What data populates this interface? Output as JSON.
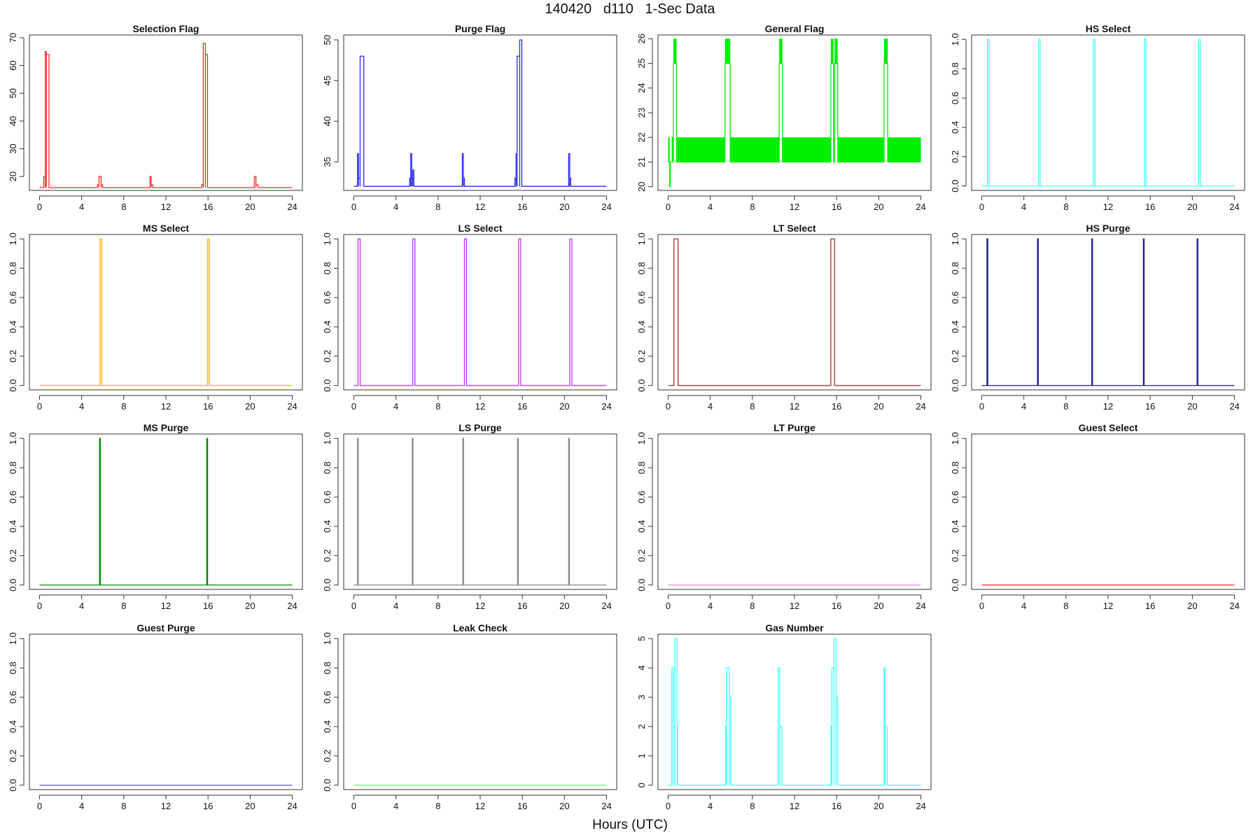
{
  "figure": {
    "title": "140420   d110   1-Sec Data",
    "xlabel": "Hours (UTC)"
  },
  "chart_data": [
    {
      "type": "line",
      "title": "Selection Flag",
      "color": "#ff2a2a",
      "xlim": [
        0,
        24
      ],
      "ylim": [
        15,
        71
      ],
      "xticks": [
        0,
        4,
        8,
        12,
        16,
        20,
        24
      ],
      "yticks": [
        20,
        30,
        40,
        50,
        60,
        70
      ],
      "baseline": 16,
      "segments": [
        [
          0.4,
          0.55,
          20
        ],
        [
          0.55,
          0.65,
          65
        ],
        [
          0.65,
          0.9,
          64
        ],
        [
          5.5,
          5.65,
          17
        ],
        [
          5.65,
          5.85,
          20
        ],
        [
          5.85,
          6.0,
          17
        ],
        [
          10.5,
          10.6,
          20
        ],
        [
          10.6,
          10.75,
          17
        ],
        [
          15.4,
          15.55,
          17
        ],
        [
          15.55,
          15.75,
          68
        ],
        [
          15.75,
          15.95,
          64
        ],
        [
          20.4,
          20.55,
          20
        ],
        [
          20.55,
          20.75,
          17
        ]
      ],
      "fills": []
    },
    {
      "type": "line",
      "title": "Purge Flag",
      "color": "#2a2aee",
      "xlim": [
        0,
        24
      ],
      "ylim": [
        31.5,
        50.6
      ],
      "xticks": [
        0,
        4,
        8,
        12,
        16,
        20,
        24
      ],
      "yticks": [
        35,
        40,
        45,
        50
      ],
      "baseline": 32,
      "segments": [
        [
          0.35,
          0.45,
          36
        ],
        [
          0.45,
          0.6,
          33
        ],
        [
          0.6,
          0.95,
          48
        ],
        [
          5.3,
          5.4,
          33
        ],
        [
          5.4,
          5.5,
          36
        ],
        [
          5.5,
          5.6,
          33
        ],
        [
          5.6,
          5.7,
          34
        ],
        [
          10.3,
          10.4,
          36
        ],
        [
          10.4,
          10.5,
          33
        ],
        [
          15.3,
          15.4,
          33
        ],
        [
          15.4,
          15.5,
          36
        ],
        [
          15.5,
          15.75,
          48
        ],
        [
          15.75,
          15.95,
          50
        ],
        [
          20.4,
          20.5,
          36
        ],
        [
          20.5,
          20.6,
          33
        ]
      ],
      "fills": []
    },
    {
      "type": "line",
      "title": "General Flag",
      "color": "#00ee00",
      "xlim": [
        0,
        24
      ],
      "ylim": [
        19.85,
        26.15
      ],
      "xticks": [
        0,
        4,
        8,
        12,
        16,
        20,
        24
      ],
      "yticks": [
        20,
        21,
        22,
        23,
        24,
        25,
        26
      ],
      "baseline": 21,
      "segments": [
        [
          0.15,
          0.2,
          20
        ],
        [
          0.4,
          0.5,
          22
        ],
        [
          0.5,
          0.8,
          25
        ],
        [
          5.4,
          5.9,
          25
        ],
        [
          10.55,
          10.85,
          25
        ],
        [
          15.45,
          15.7,
          25
        ],
        [
          15.8,
          16.1,
          25
        ],
        [
          20.5,
          20.85,
          25
        ]
      ],
      "fills": [
        [
          0.0,
          0.15,
          21,
          22
        ],
        [
          0.35,
          0.5,
          21,
          22
        ],
        [
          0.5,
          0.8,
          25,
          26
        ],
        [
          0.8,
          5.4,
          21,
          22
        ],
        [
          5.4,
          5.9,
          25,
          26
        ],
        [
          5.9,
          10.55,
          21,
          22
        ],
        [
          10.55,
          10.85,
          25,
          26
        ],
        [
          10.85,
          15.45,
          21,
          22
        ],
        [
          15.45,
          15.7,
          25,
          26
        ],
        [
          15.8,
          16.1,
          25,
          26
        ],
        [
          16.1,
          20.5,
          21,
          22
        ],
        [
          20.5,
          20.85,
          25,
          26
        ],
        [
          20.85,
          24.0,
          21,
          22
        ]
      ]
    },
    {
      "type": "line",
      "title": "HS Select",
      "color": "#44ffff",
      "xlim": [
        0,
        24
      ],
      "ylim": [
        -0.03,
        1.03
      ],
      "xticks": [
        0,
        4,
        8,
        12,
        16,
        20,
        24
      ],
      "yticks": [
        0.0,
        0.2,
        0.4,
        0.6,
        0.8,
        1.0
      ],
      "baseline": 0,
      "segments": [
        [
          0.55,
          0.7,
          1
        ],
        [
          5.4,
          5.55,
          1
        ],
        [
          10.6,
          10.75,
          1
        ],
        [
          15.45,
          15.6,
          1
        ],
        [
          20.6,
          20.75,
          1
        ]
      ],
      "fills": []
    },
    {
      "type": "line",
      "title": "MS Select",
      "color": "#ffb000",
      "xlim": [
        0,
        24
      ],
      "ylim": [
        -0.03,
        1.03
      ],
      "xticks": [
        0,
        4,
        8,
        12,
        16,
        20,
        24
      ],
      "yticks": [
        0.0,
        0.2,
        0.4,
        0.6,
        0.8,
        1.0
      ],
      "baseline": 0,
      "segments": [
        [
          5.75,
          5.9,
          1
        ],
        [
          15.95,
          16.1,
          1
        ]
      ],
      "fills": []
    },
    {
      "type": "line",
      "title": "LS Select",
      "color": "#c030ee",
      "xlim": [
        0,
        24
      ],
      "ylim": [
        -0.03,
        1.03
      ],
      "xticks": [
        0,
        4,
        8,
        12,
        16,
        20,
        24
      ],
      "yticks": [
        0.0,
        0.2,
        0.4,
        0.6,
        0.8,
        1.0
      ],
      "baseline": 0,
      "segments": [
        [
          0.4,
          0.6,
          1
        ],
        [
          5.6,
          5.8,
          1
        ],
        [
          10.5,
          10.7,
          1
        ],
        [
          15.65,
          15.85,
          1
        ],
        [
          20.5,
          20.7,
          1
        ]
      ],
      "fills": []
    },
    {
      "type": "line",
      "title": "LT Select",
      "color": "#a52a2a",
      "xlim": [
        0,
        24
      ],
      "ylim": [
        -0.03,
        1.03
      ],
      "xticks": [
        0,
        4,
        8,
        12,
        16,
        20,
        24
      ],
      "yticks": [
        0.0,
        0.2,
        0.4,
        0.6,
        0.8,
        1.0
      ],
      "baseline": 0,
      "segments": [
        [
          0.55,
          0.95,
          1
        ],
        [
          15.45,
          15.8,
          1
        ]
      ],
      "fills": []
    },
    {
      "type": "line",
      "title": "HS Purge",
      "color": "#1a1a90",
      "xlim": [
        0,
        24
      ],
      "ylim": [
        -0.03,
        1.03
      ],
      "xticks": [
        0,
        4,
        8,
        12,
        16,
        20,
        24
      ],
      "yticks": [
        0.0,
        0.2,
        0.4,
        0.6,
        0.8,
        1.0
      ],
      "baseline": 0,
      "segments": [
        [
          0.5,
          0.58,
          1
        ],
        [
          5.3,
          5.37,
          1
        ],
        [
          10.45,
          10.52,
          1
        ],
        [
          15.35,
          15.42,
          1
        ],
        [
          20.45,
          20.52,
          1
        ]
      ],
      "fills": []
    },
    {
      "type": "line",
      "title": "MS Purge",
      "color": "#008a00",
      "xlim": [
        0,
        24
      ],
      "ylim": [
        -0.03,
        1.03
      ],
      "xticks": [
        0,
        4,
        8,
        12,
        16,
        20,
        24
      ],
      "yticks": [
        0.0,
        0.2,
        0.4,
        0.6,
        0.8,
        1.0
      ],
      "baseline": 0,
      "segments": [
        [
          5.7,
          5.78,
          1
        ],
        [
          15.88,
          15.96,
          1
        ]
      ],
      "fills": []
    },
    {
      "type": "line",
      "title": "LS Purge",
      "color": "#888888",
      "xlim": [
        0,
        24
      ],
      "ylim": [
        -0.03,
        1.03
      ],
      "xticks": [
        0,
        4,
        8,
        12,
        16,
        20,
        24
      ],
      "yticks": [
        0.0,
        0.2,
        0.4,
        0.6,
        0.8,
        1.0
      ],
      "baseline": 0,
      "segments": [
        [
          0.35,
          0.42,
          1
        ],
        [
          5.55,
          5.62,
          1
        ],
        [
          10.35,
          10.42,
          1
        ],
        [
          15.55,
          15.62,
          1
        ],
        [
          20.4,
          20.47,
          1
        ]
      ],
      "fills": []
    },
    {
      "type": "line",
      "title": "LT Purge",
      "color": "#ee82ee",
      "xlim": [
        0,
        24
      ],
      "ylim": [
        -0.03,
        1.03
      ],
      "xticks": [
        0,
        4,
        8,
        12,
        16,
        20,
        24
      ],
      "yticks": [
        0.0,
        0.2,
        0.4,
        0.6,
        0.8,
        1.0
      ],
      "baseline": 0,
      "segments": [],
      "fills": []
    },
    {
      "type": "line",
      "title": "Guest Select",
      "color": "#ee2222",
      "xlim": [
        0,
        24
      ],
      "ylim": [
        -0.03,
        1.03
      ],
      "xticks": [
        0,
        4,
        8,
        12,
        16,
        20,
        24
      ],
      "yticks": [
        0.0,
        0.2,
        0.4,
        0.6,
        0.8,
        1.0
      ],
      "baseline": 0,
      "segments": [],
      "fills": []
    },
    {
      "type": "line",
      "title": "Guest Purge",
      "color": "#5555cc",
      "xlim": [
        0,
        24
      ],
      "ylim": [
        -0.03,
        1.03
      ],
      "xticks": [
        0,
        4,
        8,
        12,
        16,
        20,
        24
      ],
      "yticks": [
        0.0,
        0.2,
        0.4,
        0.6,
        0.8,
        1.0
      ],
      "baseline": 0,
      "segments": [],
      "fills": []
    },
    {
      "type": "line",
      "title": "Leak Check",
      "color": "#66ee66",
      "xlim": [
        0,
        24
      ],
      "ylim": [
        -0.03,
        1.03
      ],
      "xticks": [
        0,
        4,
        8,
        12,
        16,
        20,
        24
      ],
      "yticks": [
        0.0,
        0.2,
        0.4,
        0.6,
        0.8,
        1.0
      ],
      "baseline": 0,
      "segments": [],
      "fills": []
    },
    {
      "type": "line",
      "title": "Gas Number",
      "color": "#44ffff",
      "xlim": [
        0,
        24
      ],
      "ylim": [
        -0.15,
        5.15
      ],
      "xticks": [
        0,
        4,
        8,
        12,
        16,
        20,
        24
      ],
      "yticks": [
        0,
        1,
        2,
        3,
        4,
        5
      ],
      "baseline": 0,
      "segments": [
        [
          0.35,
          0.5,
          4
        ],
        [
          0.5,
          0.65,
          2
        ],
        [
          0.65,
          0.85,
          5
        ],
        [
          0.85,
          0.9,
          2
        ],
        [
          5.45,
          5.55,
          2
        ],
        [
          5.55,
          5.8,
          4
        ],
        [
          5.8,
          5.95,
          3
        ],
        [
          10.45,
          10.6,
          4
        ],
        [
          10.6,
          10.8,
          2
        ],
        [
          15.45,
          15.55,
          2
        ],
        [
          15.55,
          15.75,
          4
        ],
        [
          15.75,
          15.95,
          5
        ],
        [
          15.95,
          16.1,
          3
        ],
        [
          20.5,
          20.6,
          4
        ],
        [
          20.6,
          20.8,
          2
        ]
      ],
      "fills": []
    }
  ]
}
